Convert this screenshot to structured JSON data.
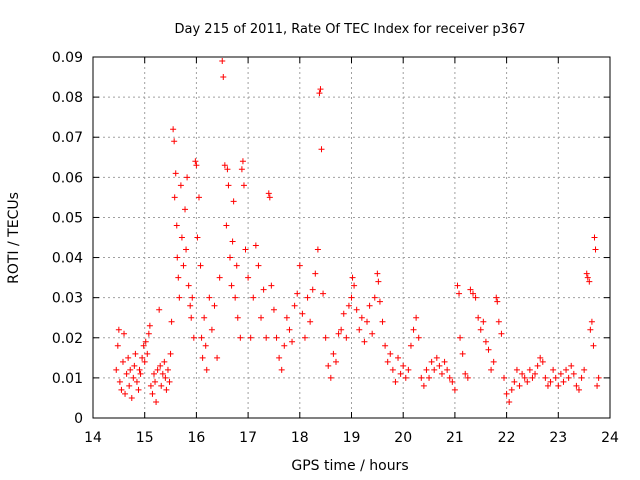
{
  "chart_data": {
    "type": "scatter",
    "title": "Day 215 of 2011, Rate Of TEC Index for receiver p367",
    "xlabel": "GPS time / hours",
    "ylabel": "ROTI / TECUs",
    "xlim": [
      14,
      24
    ],
    "ylim": [
      0,
      0.09
    ],
    "xticks": [
      "14",
      "15",
      "16",
      "17",
      "18",
      "19",
      "20",
      "21",
      "22",
      "23",
      "24"
    ],
    "yticks": [
      "0",
      "0.01",
      "0.02",
      "0.03",
      "0.04",
      "0.05",
      "0.06",
      "0.07",
      "0.08",
      "0.09"
    ],
    "grid": true,
    "marker": "plus",
    "color": "#ff0000",
    "series": [
      {
        "points": [
          [
            14.45,
            0.012
          ],
          [
            14.48,
            0.018
          ],
          [
            14.5,
            0.022
          ],
          [
            14.52,
            0.009
          ],
          [
            14.55,
            0.007
          ],
          [
            14.58,
            0.014
          ],
          [
            14.6,
            0.021
          ],
          [
            14.62,
            0.006
          ],
          [
            14.65,
            0.011
          ],
          [
            14.68,
            0.015
          ],
          [
            14.7,
            0.008
          ],
          [
            14.72,
            0.012
          ],
          [
            14.75,
            0.005
          ],
          [
            14.78,
            0.01
          ],
          [
            14.8,
            0.013
          ],
          [
            14.82,
            0.016
          ],
          [
            14.85,
            0.009
          ],
          [
            14.88,
            0.007
          ],
          [
            14.9,
            0.012
          ],
          [
            14.92,
            0.011
          ],
          [
            14.95,
            0.015
          ],
          [
            14.98,
            0.018
          ],
          [
            15.0,
            0.014
          ],
          [
            15.02,
            0.019
          ],
          [
            15.05,
            0.016
          ],
          [
            15.08,
            0.021
          ],
          [
            15.1,
            0.023
          ],
          [
            15.12,
            0.008
          ],
          [
            15.15,
            0.006
          ],
          [
            15.18,
            0.011
          ],
          [
            15.2,
            0.009
          ],
          [
            15.22,
            0.004
          ],
          [
            15.25,
            0.012
          ],
          [
            15.28,
            0.027
          ],
          [
            15.3,
            0.013
          ],
          [
            15.32,
            0.008
          ],
          [
            15.35,
            0.011
          ],
          [
            15.38,
            0.014
          ],
          [
            15.4,
            0.01
          ],
          [
            15.42,
            0.007
          ],
          [
            15.45,
            0.012
          ],
          [
            15.48,
            0.009
          ],
          [
            15.5,
            0.016
          ],
          [
            15.52,
            0.024
          ],
          [
            15.55,
            0.072
          ],
          [
            15.57,
            0.069
          ],
          [
            15.58,
            0.055
          ],
          [
            15.6,
            0.061
          ],
          [
            15.62,
            0.048
          ],
          [
            15.63,
            0.04
          ],
          [
            15.65,
            0.035
          ],
          [
            15.67,
            0.03
          ],
          [
            15.7,
            0.058
          ],
          [
            15.72,
            0.045
          ],
          [
            15.75,
            0.038
          ],
          [
            15.78,
            0.052
          ],
          [
            15.8,
            0.042
          ],
          [
            15.82,
            0.06
          ],
          [
            15.85,
            0.033
          ],
          [
            15.88,
            0.028
          ],
          [
            15.9,
            0.025
          ],
          [
            15.92,
            0.03
          ],
          [
            15.95,
            0.02
          ],
          [
            15.98,
            0.064
          ],
          [
            16.0,
            0.063
          ],
          [
            16.02,
            0.045
          ],
          [
            16.05,
            0.055
          ],
          [
            16.08,
            0.038
          ],
          [
            16.1,
            0.02
          ],
          [
            16.12,
            0.015
          ],
          [
            16.15,
            0.025
          ],
          [
            16.18,
            0.018
          ],
          [
            16.2,
            0.012
          ],
          [
            16.25,
            0.03
          ],
          [
            16.3,
            0.022
          ],
          [
            16.35,
            0.028
          ],
          [
            16.4,
            0.015
          ],
          [
            16.45,
            0.035
          ],
          [
            16.5,
            0.089
          ],
          [
            16.52,
            0.085
          ],
          [
            16.55,
            0.063
          ],
          [
            16.58,
            0.048
          ],
          [
            16.6,
            0.062
          ],
          [
            16.62,
            0.058
          ],
          [
            16.65,
            0.04
          ],
          [
            16.68,
            0.033
          ],
          [
            16.7,
            0.044
          ],
          [
            16.72,
            0.054
          ],
          [
            16.75,
            0.03
          ],
          [
            16.78,
            0.038
          ],
          [
            16.8,
            0.025
          ],
          [
            16.85,
            0.02
          ],
          [
            16.88,
            0.062
          ],
          [
            16.9,
            0.064
          ],
          [
            16.92,
            0.058
          ],
          [
            16.95,
            0.042
          ],
          [
            17.0,
            0.035
          ],
          [
            17.05,
            0.02
          ],
          [
            17.1,
            0.03
          ],
          [
            17.15,
            0.043
          ],
          [
            17.2,
            0.038
          ],
          [
            17.25,
            0.025
          ],
          [
            17.3,
            0.032
          ],
          [
            17.35,
            0.02
          ],
          [
            17.4,
            0.056
          ],
          [
            17.42,
            0.055
          ],
          [
            17.45,
            0.033
          ],
          [
            17.5,
            0.027
          ],
          [
            17.55,
            0.02
          ],
          [
            17.6,
            0.015
          ],
          [
            17.65,
            0.012
          ],
          [
            17.7,
            0.018
          ],
          [
            17.75,
            0.025
          ],
          [
            17.8,
            0.022
          ],
          [
            17.85,
            0.019
          ],
          [
            17.9,
            0.028
          ],
          [
            17.95,
            0.031
          ],
          [
            18.0,
            0.038
          ],
          [
            18.05,
            0.026
          ],
          [
            18.1,
            0.02
          ],
          [
            18.15,
            0.03
          ],
          [
            18.2,
            0.024
          ],
          [
            18.25,
            0.032
          ],
          [
            18.3,
            0.036
          ],
          [
            18.35,
            0.042
          ],
          [
            18.38,
            0.081
          ],
          [
            18.4,
            0.082
          ],
          [
            18.42,
            0.067
          ],
          [
            18.45,
            0.031
          ],
          [
            18.5,
            0.02
          ],
          [
            18.55,
            0.013
          ],
          [
            18.6,
            0.01
          ],
          [
            18.65,
            0.016
          ],
          [
            18.7,
            0.014
          ],
          [
            18.75,
            0.021
          ],
          [
            18.8,
            0.022
          ],
          [
            18.85,
            0.026
          ],
          [
            18.9,
            0.02
          ],
          [
            18.95,
            0.028
          ],
          [
            19.0,
            0.03
          ],
          [
            19.02,
            0.035
          ],
          [
            19.05,
            0.033
          ],
          [
            19.1,
            0.027
          ],
          [
            19.15,
            0.022
          ],
          [
            19.2,
            0.025
          ],
          [
            19.25,
            0.019
          ],
          [
            19.3,
            0.024
          ],
          [
            19.35,
            0.028
          ],
          [
            19.4,
            0.021
          ],
          [
            19.45,
            0.03
          ],
          [
            19.5,
            0.036
          ],
          [
            19.52,
            0.034
          ],
          [
            19.55,
            0.029
          ],
          [
            19.6,
            0.024
          ],
          [
            19.65,
            0.018
          ],
          [
            19.7,
            0.014
          ],
          [
            19.75,
            0.016
          ],
          [
            19.8,
            0.012
          ],
          [
            19.85,
            0.009
          ],
          [
            19.9,
            0.015
          ],
          [
            19.95,
            0.011
          ],
          [
            20.0,
            0.013
          ],
          [
            20.05,
            0.01
          ],
          [
            20.1,
            0.012
          ],
          [
            20.15,
            0.018
          ],
          [
            20.2,
            0.022
          ],
          [
            20.25,
            0.025
          ],
          [
            20.3,
            0.02
          ],
          [
            20.35,
            0.01
          ],
          [
            20.4,
            0.008
          ],
          [
            20.45,
            0.012
          ],
          [
            20.5,
            0.01
          ],
          [
            20.55,
            0.014
          ],
          [
            20.6,
            0.012
          ],
          [
            20.65,
            0.015
          ],
          [
            20.7,
            0.013
          ],
          [
            20.75,
            0.011
          ],
          [
            20.8,
            0.014
          ],
          [
            20.85,
            0.012
          ],
          [
            20.9,
            0.01
          ],
          [
            20.95,
            0.009
          ],
          [
            21.0,
            0.007
          ],
          [
            21.05,
            0.033
          ],
          [
            21.08,
            0.031
          ],
          [
            21.1,
            0.02
          ],
          [
            21.15,
            0.016
          ],
          [
            21.2,
            0.011
          ],
          [
            21.25,
            0.01
          ],
          [
            21.3,
            0.032
          ],
          [
            21.35,
            0.031
          ],
          [
            21.4,
            0.03
          ],
          [
            21.45,
            0.025
          ],
          [
            21.5,
            0.022
          ],
          [
            21.55,
            0.024
          ],
          [
            21.6,
            0.019
          ],
          [
            21.65,
            0.017
          ],
          [
            21.7,
            0.012
          ],
          [
            21.75,
            0.014
          ],
          [
            21.8,
            0.03
          ],
          [
            21.82,
            0.029
          ],
          [
            21.85,
            0.024
          ],
          [
            21.9,
            0.021
          ],
          [
            21.95,
            0.01
          ],
          [
            22.0,
            0.006
          ],
          [
            22.05,
            0.004
          ],
          [
            22.1,
            0.007
          ],
          [
            22.15,
            0.009
          ],
          [
            22.2,
            0.012
          ],
          [
            22.25,
            0.008
          ],
          [
            22.3,
            0.011
          ],
          [
            22.35,
            0.01
          ],
          [
            22.4,
            0.009
          ],
          [
            22.45,
            0.012
          ],
          [
            22.5,
            0.01
          ],
          [
            22.55,
            0.011
          ],
          [
            22.6,
            0.013
          ],
          [
            22.65,
            0.015
          ],
          [
            22.7,
            0.014
          ],
          [
            22.75,
            0.01
          ],
          [
            22.8,
            0.008
          ],
          [
            22.85,
            0.009
          ],
          [
            22.9,
            0.012
          ],
          [
            22.95,
            0.01
          ],
          [
            23.0,
            0.008
          ],
          [
            23.05,
            0.011
          ],
          [
            23.1,
            0.009
          ],
          [
            23.15,
            0.012
          ],
          [
            23.2,
            0.01
          ],
          [
            23.25,
            0.013
          ],
          [
            23.3,
            0.011
          ],
          [
            23.35,
            0.008
          ],
          [
            23.4,
            0.007
          ],
          [
            23.45,
            0.01
          ],
          [
            23.5,
            0.012
          ],
          [
            23.55,
            0.036
          ],
          [
            23.57,
            0.035
          ],
          [
            23.6,
            0.034
          ],
          [
            23.62,
            0.022
          ],
          [
            23.65,
            0.024
          ],
          [
            23.68,
            0.018
          ],
          [
            23.7,
            0.045
          ],
          [
            23.72,
            0.042
          ],
          [
            23.75,
            0.008
          ],
          [
            23.78,
            0.01
          ]
        ]
      }
    ]
  }
}
